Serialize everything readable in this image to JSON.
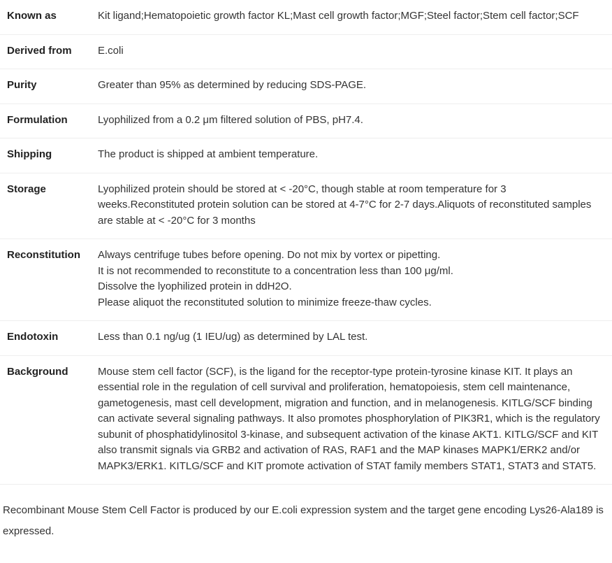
{
  "rows": [
    {
      "label": "Known as",
      "value": "Kit ligand;Hematopoietic growth factor KL;Mast cell growth factor;MGF;Steel factor;Stem cell factor;SCF"
    },
    {
      "label": "Derived from",
      "value": "E.coli"
    },
    {
      "label": "Purity",
      "value": "Greater than 95% as determined by reducing SDS-PAGE."
    },
    {
      "label": "Formulation",
      "value": "Lyophilized from a 0.2 μm filtered solution of PBS, pH7.4."
    },
    {
      "label": "Shipping",
      "value": "The product is shipped at ambient temperature."
    },
    {
      "label": "Storage",
      "value": "Lyophilized protein should be stored at < -20°C, though stable at room temperature for 3 weeks.Reconstituted protein solution can be stored at 4-7°C for 2-7 days.Aliquots of reconstituted samples are stable at < -20°C for 3 months"
    },
    {
      "label": "Reconstitution",
      "lines": [
        "Always centrifuge tubes before opening. Do not mix by vortex or pipetting.",
        "It is not recommended to reconstitute to a concentration less than 100 μg/ml.",
        "Dissolve the lyophilized protein in ddH2O.",
        "Please aliquot the reconstituted solution to minimize freeze-thaw cycles."
      ]
    },
    {
      "label": "Endotoxin",
      "value": "Less than 0.1 ng/ug (1 IEU/ug) as determined by LAL test."
    },
    {
      "label": "Background",
      "value": "Mouse stem cell factor (SCF), is the ligand for the receptor-type protein-tyrosine kinase KIT. It plays an essential role in the regulation of cell survival and proliferation, hematopoiesis, stem cell maintenance, gametogenesis, mast cell development, migration and function, and in melanogenesis. KITLG/SCF binding can activate several signaling pathways. It also promotes phosphorylation of PIK3R1, which is the regulatory subunit of phosphatidylinositol 3-kinase, and subsequent activation of the kinase AKT1. KITLG/SCF and KIT also transmit signals via GRB2 and activation of RAS, RAF1 and the MAP kinases MAPK1/ERK2 and/or MAPK3/ERK1. KITLG/SCF and KIT promote activation of STAT family members STAT1, STAT3 and STAT5."
    }
  ],
  "footer": "Recombinant Mouse Stem Cell Factor is produced by our E.coli expression system and the target gene encoding Lys26-Ala189 is expressed.",
  "colors": {
    "border": "#eeeeee",
    "text": "#333333",
    "label": "#222222",
    "background": "#ffffff"
  }
}
